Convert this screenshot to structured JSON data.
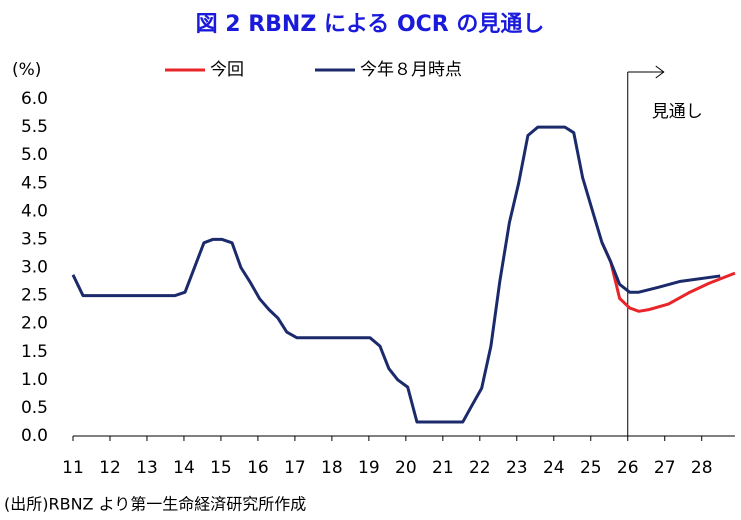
{
  "chart_data": {
    "type": "line",
    "title": "図 2  RBNZ による OCR の見通し",
    "y_unit_label": "(%)",
    "source": "(出所)RBNZ より第一生命経済研究所作成",
    "xlim": [
      11,
      28.9
    ],
    "xticks": [
      11,
      12,
      13,
      14,
      15,
      16,
      17,
      18,
      19,
      20,
      21,
      22,
      23,
      24,
      25,
      26,
      27,
      28
    ],
    "ylim": [
      0,
      6
    ],
    "yticks": [
      {
        "value": 0,
        "label": "0.0"
      },
      {
        "value": 0.5,
        "label": "0.5"
      },
      {
        "value": 1,
        "label": "1.0"
      },
      {
        "value": 1.5,
        "label": "1.5"
      },
      {
        "value": 2,
        "label": "2.0"
      },
      {
        "value": 2.5,
        "label": "2.5"
      },
      {
        "value": 3,
        "label": "3.0"
      },
      {
        "value": 3.5,
        "label": "3.5"
      },
      {
        "value": 4,
        "label": "4.0"
      },
      {
        "value": 4.5,
        "label": "4.5"
      },
      {
        "value": 5,
        "label": "5.0"
      },
      {
        "value": 5.5,
        "label": "5.5"
      },
      {
        "value": 6,
        "label": "6.0"
      }
    ],
    "forecast_start": 26,
    "forecast_label": "見通し",
    "series": [
      {
        "name": "今回",
        "color": "#e8262a",
        "x": [
          25.3,
          25.54,
          25.78,
          26.05,
          26.3,
          26.57,
          27.1,
          27.65,
          28.2,
          28.9
        ],
        "values": [
          3.45,
          3.1,
          2.45,
          2.28,
          2.22,
          2.25,
          2.35,
          2.55,
          2.72,
          2.9
        ]
      },
      {
        "name": "今年８月時点",
        "color": "#1b2a6b",
        "x": [
          11.0,
          11.27,
          13.76,
          14.03,
          14.54,
          14.78,
          15.03,
          15.3,
          15.54,
          15.78,
          16.05,
          16.3,
          16.54,
          16.78,
          17.05,
          19.03,
          19.3,
          19.54,
          19.78,
          20.05,
          20.3,
          21.54,
          21.8,
          22.05,
          22.3,
          22.54,
          22.8,
          23.05,
          23.3,
          23.57,
          24.3,
          24.54,
          24.78,
          25.05,
          25.3,
          25.54,
          25.78,
          26.05,
          26.3,
          26.84,
          27.4,
          28.5
        ],
        "values": [
          2.87,
          2.5,
          2.5,
          2.56,
          3.44,
          3.5,
          3.5,
          3.44,
          3.0,
          2.75,
          2.44,
          2.25,
          2.1,
          1.85,
          1.75,
          1.75,
          1.6,
          1.2,
          1.0,
          0.87,
          0.25,
          0.25,
          0.56,
          0.85,
          1.6,
          2.75,
          3.8,
          4.5,
          5.35,
          5.5,
          5.5,
          5.4,
          4.6,
          4.0,
          3.45,
          3.1,
          2.7,
          2.56,
          2.56,
          2.65,
          2.75,
          2.85
        ]
      }
    ]
  }
}
